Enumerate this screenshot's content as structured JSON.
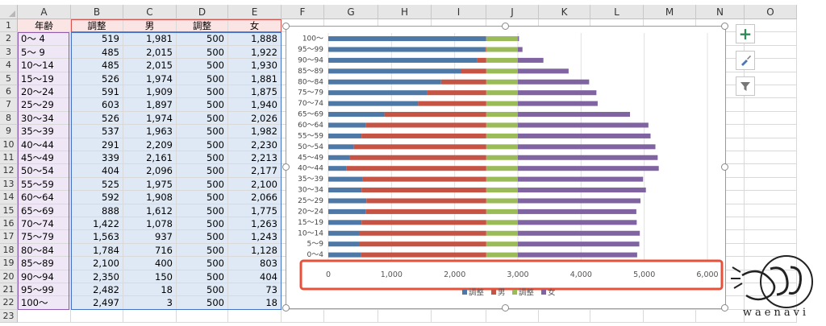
{
  "columns": [
    "A",
    "B",
    "C",
    "D",
    "E",
    "F",
    "G",
    "H",
    "I",
    "J",
    "K",
    "L",
    "M",
    "N",
    "O"
  ],
  "header_row": {
    "age": "年齢",
    "adj1": "調整",
    "male": "男",
    "adj2": "調整",
    "female": "女"
  },
  "rows": [
    {
      "age": "0～ 4",
      "adj1": "519",
      "male": "1,981",
      "adj2": "500",
      "female": "1,888"
    },
    {
      "age": "5～ 9",
      "adj1": "485",
      "male": "2,015",
      "adj2": "500",
      "female": "1,922"
    },
    {
      "age": "10～14",
      "adj1": "485",
      "male": "2,015",
      "adj2": "500",
      "female": "1,930"
    },
    {
      "age": "15～19",
      "adj1": "526",
      "male": "1,974",
      "adj2": "500",
      "female": "1,881"
    },
    {
      "age": "20～24",
      "adj1": "591",
      "male": "1,909",
      "adj2": "500",
      "female": "1,875"
    },
    {
      "age": "25～29",
      "adj1": "603",
      "male": "1,897",
      "adj2": "500",
      "female": "1,940"
    },
    {
      "age": "30～34",
      "adj1": "526",
      "male": "1,974",
      "adj2": "500",
      "female": "2,026"
    },
    {
      "age": "35～39",
      "adj1": "537",
      "male": "1,963",
      "adj2": "500",
      "female": "1,982"
    },
    {
      "age": "40～44",
      "adj1": "291",
      "male": "2,209",
      "adj2": "500",
      "female": "2,230"
    },
    {
      "age": "45～49",
      "adj1": "339",
      "male": "2,161",
      "adj2": "500",
      "female": "2,213"
    },
    {
      "age": "50～54",
      "adj1": "404",
      "male": "2,096",
      "adj2": "500",
      "female": "2,177"
    },
    {
      "age": "55～59",
      "adj1": "525",
      "male": "1,975",
      "adj2": "500",
      "female": "2,100"
    },
    {
      "age": "60～64",
      "adj1": "592",
      "male": "1,908",
      "adj2": "500",
      "female": "2,066"
    },
    {
      "age": "65～69",
      "adj1": "888",
      "male": "1,612",
      "adj2": "500",
      "female": "1,775"
    },
    {
      "age": "70～74",
      "adj1": "1,422",
      "male": "1,078",
      "adj2": "500",
      "female": "1,263"
    },
    {
      "age": "75～79",
      "adj1": "1,563",
      "male": "937",
      "adj2": "500",
      "female": "1,243"
    },
    {
      "age": "80～84",
      "adj1": "1,784",
      "male": "716",
      "adj2": "500",
      "female": "1,128"
    },
    {
      "age": "85～89",
      "adj1": "2,100",
      "male": "400",
      "adj2": "500",
      "female": "803"
    },
    {
      "age": "90～94",
      "adj1": "2,350",
      "male": "150",
      "adj2": "500",
      "female": "404"
    },
    {
      "age": "95～99",
      "adj1": "2,482",
      "male": "18",
      "adj2": "500",
      "female": "73"
    },
    {
      "age": "100～",
      "adj1": "2,497",
      "male": "3",
      "adj2": "500",
      "female": "18"
    }
  ],
  "chart_data": {
    "type": "bar",
    "orientation": "horizontal-stacked",
    "categories": [
      "0～4",
      "5～9",
      "10～14",
      "15～19",
      "20～24",
      "25～29",
      "30～34",
      "35～39",
      "40～44",
      "45～49",
      "50～54",
      "55～59",
      "60～64",
      "65～69",
      "70～74",
      "75～79",
      "80～84",
      "85～89",
      "90～94",
      "95～99",
      "100～"
    ],
    "series": [
      {
        "name": "調整",
        "color": "#4e79a7",
        "values": [
          519,
          485,
          485,
          526,
          591,
          603,
          526,
          537,
          291,
          339,
          404,
          525,
          592,
          888,
          1422,
          1563,
          1784,
          2100,
          2350,
          2482,
          2497
        ]
      },
      {
        "name": "男",
        "color": "#c65445",
        "values": [
          1981,
          2015,
          2015,
          1974,
          1909,
          1897,
          1974,
          1963,
          2209,
          2161,
          2096,
          1975,
          1908,
          1612,
          1078,
          937,
          716,
          400,
          150,
          18,
          3
        ]
      },
      {
        "name": "調整",
        "color": "#9bbb59",
        "values": [
          500,
          500,
          500,
          500,
          500,
          500,
          500,
          500,
          500,
          500,
          500,
          500,
          500,
          500,
          500,
          500,
          500,
          500,
          500,
          500,
          500
        ]
      },
      {
        "name": "女",
        "color": "#8064a2",
        "values": [
          1888,
          1922,
          1930,
          1881,
          1875,
          1940,
          2026,
          1982,
          2230,
          2213,
          2177,
          2100,
          2066,
          1775,
          1263,
          1243,
          1128,
          803,
          404,
          73,
          18
        ]
      }
    ],
    "xlim": [
      0,
      6000
    ],
    "x_ticks": [
      "0",
      "1,000",
      "2,000",
      "3,000",
      "4,000",
      "5,000",
      "6,000"
    ],
    "legend": "bottom",
    "grid": true
  },
  "highlight": {
    "color": "#e8503a"
  },
  "logo_text": "waenavi"
}
